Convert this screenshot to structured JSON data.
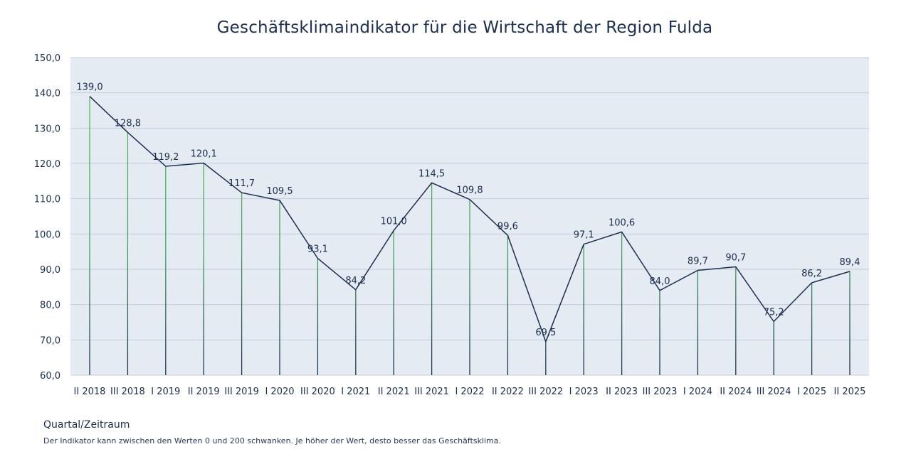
{
  "chart_data": {
    "type": "line",
    "title": "Geschäftsklimaindikator für die Wirtschaft der Region Fulda",
    "xlabel": "Quartal/Zeitraum",
    "ylabel": "",
    "ylim": [
      60,
      150
    ],
    "yticks": [
      "60,0",
      "70,0",
      "80,0",
      "90,0",
      "100,0",
      "110,0",
      "120,0",
      "130,0",
      "140,0",
      "150,0"
    ],
    "grid": true,
    "legend": "none",
    "categories": [
      "II 2018",
      "III 2018",
      "I 2019",
      "II 2019",
      "III 2019",
      "I 2020",
      "III 2020",
      "I 2021",
      "II 2021",
      "III 2021",
      "I 2022",
      "II 2022",
      "III 2022",
      "I 2023",
      "II 2023",
      "III 2023",
      "I 2024",
      "II 2024",
      "III 2024",
      "I 2025",
      "II 2025"
    ],
    "series": [
      {
        "values": [
          139.0,
          128.8,
          119.2,
          120.1,
          111.7,
          109.5,
          93.1,
          84.2,
          101.0,
          114.5,
          109.8,
          99.6,
          69.5,
          97.1,
          100.6,
          84.0,
          89.7,
          90.7,
          75.2,
          86.2,
          89.4
        ],
        "labels": [
          "139,0",
          "128,8",
          "119,2",
          "120,1",
          "111,7",
          "109,5",
          "93,1",
          "84,2",
          "101,0",
          "114,5",
          "109,8",
          "99,6",
          "69,5",
          "97,1",
          "100,6",
          "84,0",
          "89,7",
          "90,7",
          "75,2",
          "86,2",
          "89,4"
        ]
      }
    ],
    "colors": {
      "plot_background": "#e5ebf3",
      "gridline": "#c4ceda",
      "line": "#1b2f4e",
      "drop_line_top": "#5cb85c",
      "drop_line_bottom": "#1b2f4e"
    },
    "footnote": "Der Indikator kann zwischen den Werten 0 und  200 schwanken. Je höher der Wert, desto besser das Geschäftsklima."
  }
}
